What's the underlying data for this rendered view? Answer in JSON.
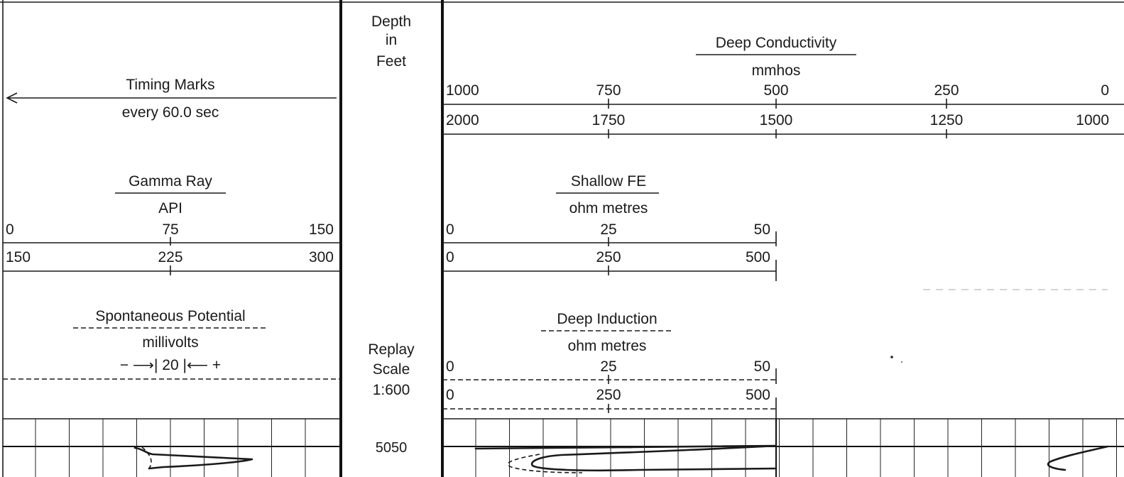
{
  "depth_track": {
    "header": [
      "Depth",
      "in",
      "Feet"
    ],
    "replay": [
      "Replay",
      "Scale",
      "1:600"
    ],
    "depth_label": "5050"
  },
  "timing": {
    "title": "Timing Marks",
    "subtitle": "every 60.0 sec"
  },
  "gamma_ray": {
    "title": "Gamma Ray",
    "unit": "API",
    "scale1": [
      "0",
      "75",
      "150"
    ],
    "scale2": [
      "150",
      "225",
      "300"
    ]
  },
  "spontaneous_potential": {
    "title": "Spontaneous Potential",
    "unit": "millivolts",
    "scale_text": "− ⟶| 20 |⟵ +"
  },
  "deep_conductivity": {
    "title": "Deep Conductivity",
    "unit": "mmhos",
    "scale1": [
      "1000",
      "750",
      "500",
      "250",
      "0"
    ],
    "scale2": [
      "2000",
      "1750",
      "1500",
      "1250",
      "1000"
    ]
  },
  "shallow_fe": {
    "title": "Shallow FE",
    "unit": "ohm metres",
    "scale1": [
      "0",
      "25",
      "50"
    ],
    "scale2": [
      "0",
      "250",
      "500"
    ]
  },
  "deep_induction": {
    "title": "Deep Induction",
    "unit": "ohm metres",
    "scale1": [
      "0",
      "25",
      "50"
    ],
    "scale2": [
      "0",
      "250",
      "500"
    ]
  }
}
